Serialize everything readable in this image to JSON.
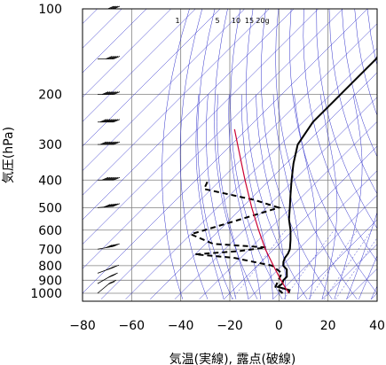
{
  "chart_data": {
    "type": "skew-t log-p sounding",
    "title": "",
    "xlabel": "気温(実線), 露点(破線)",
    "ylabel": "気圧(hPa)",
    "x_ticks": [
      -80,
      -60,
      -40,
      -20,
      0,
      20,
      40
    ],
    "y_ticks": [
      100,
      200,
      300,
      400,
      500,
      600,
      700,
      800,
      900,
      1000
    ],
    "xlim": [
      -80,
      40
    ],
    "ylim": [
      1050,
      100
    ],
    "y_scale": "log",
    "grid": true,
    "mixing_ratio_labels": [
      "1",
      "5",
      "10",
      "15",
      "20g"
    ],
    "colors": {
      "temperature": "#000000",
      "dewpoint": "#000000",
      "dry_adiabats": "#3333cc",
      "moist_adiabats": "#3333cc",
      "mixing_ratio": "#3333cc",
      "isotherms": "#3333cc",
      "grid": "#808080",
      "parcel_path": "#cc0033",
      "wind_barbs": "#000000"
    },
    "series": [
      {
        "name": "気温",
        "style": "solid",
        "points": [
          {
            "p": 1000,
            "t": 4.0
          },
          {
            "p": 975,
            "t": 3.0
          },
          {
            "p": 950,
            "t": -3.0
          },
          {
            "p": 925,
            "t": -2.5
          },
          {
            "p": 900,
            "t": -3.5
          },
          {
            "p": 875,
            "t": -3.5
          },
          {
            "p": 850,
            "t": -5.0
          },
          {
            "p": 825,
            "t": -6.5
          },
          {
            "p": 800,
            "t": -9.5
          },
          {
            "p": 775,
            "t": -11.0
          },
          {
            "p": 750,
            "t": -12.0
          },
          {
            "p": 725,
            "t": -12.5
          },
          {
            "p": 700,
            "t": -13.5
          },
          {
            "p": 650,
            "t": -17.0
          },
          {
            "p": 600,
            "t": -21.0
          },
          {
            "p": 550,
            "t": -26.0
          },
          {
            "p": 500,
            "t": -30.5
          },
          {
            "p": 450,
            "t": -35.5
          },
          {
            "p": 400,
            "t": -41.0
          },
          {
            "p": 350,
            "t": -47.0
          },
          {
            "p": 300,
            "t": -53.0
          },
          {
            "p": 250,
            "t": -56.0
          },
          {
            "p": 200,
            "t": -56.0
          },
          {
            "p": 150,
            "t": -56.0
          },
          {
            "p": 125,
            "t": -60.0
          },
          {
            "p": 100,
            "t": -68.0
          }
        ]
      },
      {
        "name": "露点",
        "style": "dashed",
        "points": [
          {
            "p": 1000,
            "t": 1.5
          },
          {
            "p": 950,
            "t": -4.0
          },
          {
            "p": 900,
            "t": -5.5
          },
          {
            "p": 850,
            "t": -7.0
          },
          {
            "p": 800,
            "t": -14.0
          },
          {
            "p": 750,
            "t": -33.0
          },
          {
            "p": 730,
            "t": -50.0
          },
          {
            "p": 710,
            "t": -33.0
          },
          {
            "p": 690,
            "t": -24.0
          },
          {
            "p": 670,
            "t": -47.0
          },
          {
            "p": 620,
            "t": -60.0
          },
          {
            "p": 560,
            "t": -48.0
          },
          {
            "p": 500,
            "t": -35.0
          },
          {
            "p": 470,
            "t": -48.0
          },
          {
            "p": 430,
            "t": -73.0
          },
          {
            "p": 400,
            "t": -75.0
          }
        ]
      },
      {
        "name": "",
        "style": "parcel",
        "points": [
          {
            "p": 1000,
            "t": 4.0
          },
          {
            "p": 900,
            "t": -4.5
          },
          {
            "p": 800,
            "t": -13.5
          },
          {
            "p": 700,
            "t": -23.5
          },
          {
            "p": 600,
            "t": -34.0
          },
          {
            "p": 500,
            "t": -46.0
          },
          {
            "p": 400,
            "t": -60.0
          },
          {
            "p": 300,
            "t": -77.5
          },
          {
            "p": 265,
            "t": -85.0
          }
        ]
      }
    ],
    "wind_profile": [
      {
        "p": 1000,
        "dir": 230,
        "speed": 15
      },
      {
        "p": 925,
        "dir": 240,
        "speed": 25
      },
      {
        "p": 850,
        "dir": 250,
        "speed": 35
      },
      {
        "p": 700,
        "dir": 260,
        "speed": 45
      },
      {
        "p": 500,
        "dir": 265,
        "speed": 55
      },
      {
        "p": 400,
        "dir": 270,
        "speed": 65
      },
      {
        "p": 300,
        "dir": 270,
        "speed": 75
      },
      {
        "p": 250,
        "dir": 270,
        "speed": 75
      },
      {
        "p": 200,
        "dir": 270,
        "speed": 65
      },
      {
        "p": 150,
        "dir": 270,
        "speed": 50
      },
      {
        "p": 100,
        "dir": 270,
        "speed": 35
      }
    ]
  }
}
